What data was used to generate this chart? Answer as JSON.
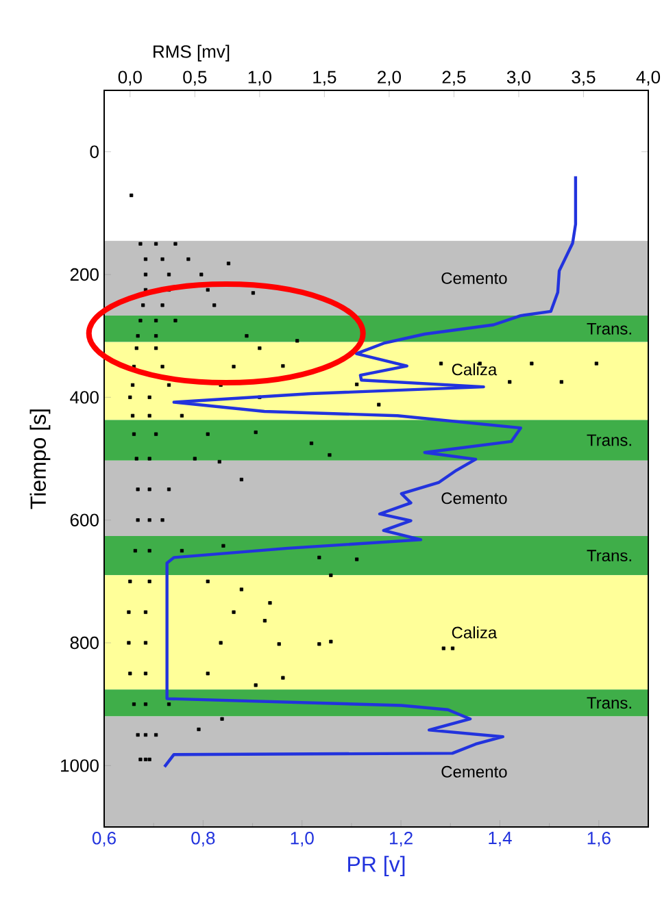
{
  "chart_data": {
    "type": "line",
    "xlabel": "PR [v]",
    "x2label": "RMS [mv]",
    "ylabel": "Tiempo [s]",
    "xlim": [
      0.6,
      1.7
    ],
    "xticks": [
      {
        "value": 0.6,
        "label": "0,6"
      },
      {
        "value": 0.8,
        "label": "0,8"
      },
      {
        "value": 1.0,
        "label": "1,0"
      },
      {
        "value": 1.2,
        "label": "1,2"
      },
      {
        "value": 1.4,
        "label": "1,4"
      },
      {
        "value": 1.6,
        "label": "1,6"
      }
    ],
    "x2lim": [
      -0.2,
      4.0
    ],
    "x2ticks": [
      {
        "value": 0.0,
        "label": "0,0"
      },
      {
        "value": 0.5,
        "label": "0,5"
      },
      {
        "value": 1.0,
        "label": "1,0"
      },
      {
        "value": 1.5,
        "label": "1,5"
      },
      {
        "value": 2.0,
        "label": "2,0"
      },
      {
        "value": 2.5,
        "label": "2,5"
      },
      {
        "value": 3.0,
        "label": "3,0"
      },
      {
        "value": 3.5,
        "label": "3,5"
      },
      {
        "value": 4.0,
        "label": "4,0"
      }
    ],
    "ylim": [
      1100,
      -100
    ],
    "yticks": [
      0,
      200,
      400,
      600,
      800,
      1000
    ],
    "bands": [
      {
        "axis": "y",
        "from": 145,
        "to": 267,
        "label": "Cemento",
        "color": "#c0c0c0"
      },
      {
        "axis": "y",
        "from": 267,
        "to": 310,
        "label": "Trans.",
        "color": "#3fae49"
      },
      {
        "axis": "y",
        "from": 310,
        "to": 437,
        "label": "Caliza",
        "color": "#ffff99"
      },
      {
        "axis": "y",
        "from": 437,
        "to": 503,
        "label": "Trans.",
        "color": "#3fae49"
      },
      {
        "axis": "y",
        "from": 503,
        "to": 626,
        "label": "Cemento",
        "color": "#c0c0c0"
      },
      {
        "axis": "y",
        "from": 626,
        "to": 690,
        "label": "Trans.",
        "color": "#3fae49"
      },
      {
        "axis": "y",
        "from": 690,
        "to": 876,
        "label": "Caliza",
        "color": "#ffff99"
      },
      {
        "axis": "y",
        "from": 876,
        "to": 920,
        "label": "Trans.",
        "color": "#3fae49"
      },
      {
        "axis": "y",
        "from": 920,
        "to": 1100,
        "label": "Cemento",
        "color": "#c0c0c0"
      }
    ],
    "series": [
      {
        "type": "scatter",
        "axis": "x2",
        "color": "#000000",
        "marker": "square",
        "x": [
          0.01,
          0.08,
          0.2,
          0.35,
          0.12,
          0.25,
          0.45,
          0.12,
          0.3,
          0.55,
          0.12,
          0.3,
          0.6,
          0.1,
          0.25,
          0.65,
          0.08,
          0.2,
          0.35,
          0.06,
          0.2,
          0.9,
          0.05,
          0.2,
          1.0,
          0.03,
          0.25,
          0.8,
          0.02,
          0.3,
          0.7,
          0.0,
          0.15,
          1.0,
          0.02,
          0.15,
          0.4,
          0.03,
          0.2,
          0.6,
          0.05,
          0.15,
          0.5,
          0.06,
          0.15,
          0.3,
          0.06,
          0.15,
          0.25,
          0.04,
          0.15,
          0.4,
          0.0,
          0.15,
          0.6,
          -0.01,
          0.12,
          0.8,
          -0.01,
          0.12,
          0.7,
          0.0,
          0.12,
          0.6,
          0.03,
          0.12,
          0.3,
          0.06,
          0.12,
          0.2,
          0.08,
          0.12,
          0.15,
          0.76,
          0.95,
          1.29,
          2.4,
          2.7,
          3.1,
          3.6,
          2.93,
          3.33,
          1.92,
          1.4,
          1.54,
          0.97,
          0.86,
          0.69,
          1.18,
          1.75,
          0.72,
          1.46,
          1.75,
          1.55,
          1.46,
          1.55,
          2.42,
          2.49,
          1.15,
          1.18,
          0.97,
          1.08,
          1.04,
          0.86,
          0.71,
          0.53
        ],
        "values": [
          71,
          150,
          150,
          150,
          175,
          175,
          175,
          200,
          200,
          200,
          225,
          225,
          225,
          250,
          250,
          250,
          275,
          275,
          275,
          300,
          300,
          300,
          320,
          320,
          320,
          350,
          350,
          350,
          380,
          380,
          380,
          400,
          400,
          400,
          430,
          430,
          430,
          460,
          460,
          460,
          500,
          500,
          500,
          550,
          550,
          550,
          600,
          600,
          600,
          650,
          650,
          650,
          700,
          700,
          700,
          750,
          750,
          750,
          800,
          800,
          800,
          850,
          850,
          850,
          900,
          900,
          900,
          950,
          950,
          950,
          990,
          990,
          990,
          182,
          230,
          308,
          345,
          345,
          345,
          345,
          375,
          375,
          412,
          475,
          494,
          457,
          534,
          505,
          349,
          379,
          642,
          661,
          664,
          690,
          802,
          798,
          809,
          809,
          802,
          857,
          869,
          735,
          764,
          713,
          924,
          941
        ]
      },
      {
        "type": "line",
        "color": "#2233dd",
        "marker": "none",
        "x": [
          1.553,
          1.553,
          1.547,
          1.52,
          1.517,
          1.503,
          1.442,
          1.387,
          1.248,
          1.165,
          1.11,
          1.212,
          1.118,
          1.12,
          1.367,
          1.018,
          0.741,
          0.924,
          1.193,
          1.442,
          1.423,
          1.248,
          1.351,
          1.312,
          1.276,
          1.201,
          1.22,
          1.157,
          1.22,
          1.165,
          1.24,
          0.971,
          0.741,
          0.727,
          0.727,
          1.201,
          1.295,
          1.34,
          1.257,
          1.406,
          1.351,
          1.304,
          0.741,
          0.722
        ],
        "values": [
          40,
          118,
          149,
          194,
          229,
          260,
          267,
          282,
          297,
          312,
          329,
          349,
          364,
          372,
          383,
          394,
          408,
          423,
          430,
          450,
          472,
          490,
          501,
          519,
          539,
          557,
          572,
          590,
          601,
          617,
          632,
          646,
          661,
          670,
          891,
          902,
          909,
          924,
          942,
          953,
          965,
          980,
          982,
          1002
        ]
      }
    ]
  }
}
